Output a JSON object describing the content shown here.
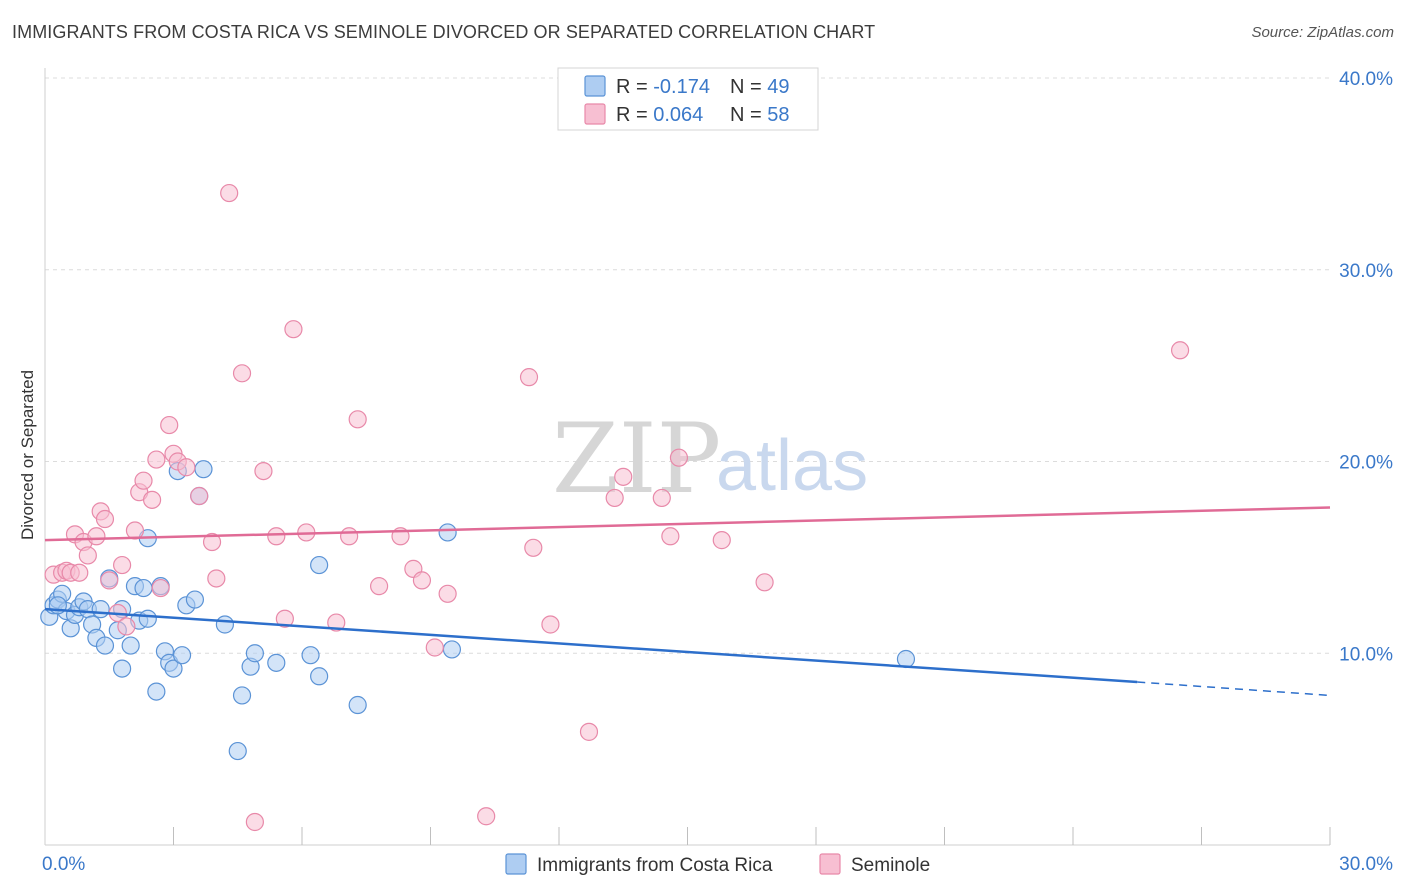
{
  "header": {
    "title": "IMMIGRANTS FROM COSTA RICA VS SEMINOLE DIVORCED OR SEPARATED CORRELATION CHART",
    "source": "Source: ZipAtlas.com"
  },
  "watermark": {
    "zip": "ZIP",
    "atlas": "atlas"
  },
  "legend": {
    "rows": [
      {
        "r_label": "R = ",
        "r_value": "-0.174",
        "n_label": "N = ",
        "n_value": "49"
      },
      {
        "r_label": "R = ",
        "r_value": "0.064",
        "n_label": "N = ",
        "n_value": "58"
      }
    ]
  },
  "colors": {
    "blue_fill": "#aecdf2",
    "blue_stroke": "#5b93d6",
    "blue_line": "#2d6fcb",
    "pink_fill": "#f7bfd2",
    "pink_stroke": "#e889a9",
    "pink_line": "#e06b96"
  },
  "chart_data": {
    "type": "scatter",
    "xlabel": "",
    "ylabel": "Divorced or Separated",
    "xlim": [
      0,
      30
    ],
    "ylim": [
      0,
      40
    ],
    "x_ticks": [
      {
        "value": 0,
        "label": "0.0%"
      },
      {
        "value": 30,
        "label": "30.0%"
      }
    ],
    "y_ticks": [
      {
        "value": 10,
        "label": "10.0%"
      },
      {
        "value": 20,
        "label": "20.0%"
      },
      {
        "value": 30,
        "label": "30.0%"
      },
      {
        "value": 40,
        "label": "40.0%"
      }
    ],
    "grid": true,
    "legend_position": "top-center",
    "series": [
      {
        "name": "Immigrants from Costa Rica",
        "color": "blue",
        "trend": {
          "x": [
            0,
            25.5
          ],
          "y": [
            12.3,
            8.5
          ],
          "dashed_to": [
            30,
            7.8
          ]
        },
        "points": [
          [
            0.1,
            11.9
          ],
          [
            0.2,
            12.5
          ],
          [
            0.3,
            12.8
          ],
          [
            0.4,
            13.1
          ],
          [
            0.5,
            12.2
          ],
          [
            0.6,
            11.3
          ],
          [
            0.7,
            12.0
          ],
          [
            0.8,
            12.4
          ],
          [
            0.9,
            12.7
          ],
          [
            1.0,
            12.3
          ],
          [
            1.1,
            11.5
          ],
          [
            1.2,
            10.8
          ],
          [
            1.3,
            12.3
          ],
          [
            1.4,
            10.4
          ],
          [
            1.5,
            13.9
          ],
          [
            1.7,
            11.2
          ],
          [
            1.8,
            12.3
          ],
          [
            1.8,
            9.2
          ],
          [
            2.0,
            10.4
          ],
          [
            2.1,
            13.5
          ],
          [
            2.2,
            11.7
          ],
          [
            2.3,
            13.4
          ],
          [
            2.4,
            11.8
          ],
          [
            2.4,
            16.0
          ],
          [
            2.6,
            8.0
          ],
          [
            2.7,
            13.5
          ],
          [
            2.8,
            10.1
          ],
          [
            2.9,
            9.5
          ],
          [
            3.0,
            9.2
          ],
          [
            3.1,
            19.5
          ],
          [
            3.2,
            9.9
          ],
          [
            3.3,
            12.5
          ],
          [
            3.5,
            12.8
          ],
          [
            3.6,
            18.2
          ],
          [
            3.7,
            19.6
          ],
          [
            4.2,
            11.5
          ],
          [
            4.5,
            4.9
          ],
          [
            4.6,
            7.8
          ],
          [
            4.8,
            9.3
          ],
          [
            4.9,
            10.0
          ],
          [
            5.4,
            9.5
          ],
          [
            6.2,
            9.9
          ],
          [
            6.4,
            14.6
          ],
          [
            6.4,
            8.8
          ],
          [
            7.3,
            7.3
          ],
          [
            9.4,
            16.3
          ],
          [
            9.5,
            10.2
          ],
          [
            20.1,
            9.7
          ],
          [
            0.3,
            12.5
          ]
        ]
      },
      {
        "name": "Seminole",
        "color": "pink",
        "trend": {
          "x": [
            0,
            30
          ],
          "y": [
            15.9,
            17.6
          ]
        },
        "points": [
          [
            0.2,
            14.1
          ],
          [
            0.4,
            14.2
          ],
          [
            0.5,
            14.3
          ],
          [
            0.6,
            14.2
          ],
          [
            0.7,
            16.2
          ],
          [
            0.9,
            15.8
          ],
          [
            1.0,
            15.1
          ],
          [
            1.2,
            16.1
          ],
          [
            1.3,
            17.4
          ],
          [
            1.4,
            17.0
          ],
          [
            1.5,
            13.8
          ],
          [
            1.7,
            12.1
          ],
          [
            1.8,
            14.6
          ],
          [
            1.9,
            11.4
          ],
          [
            2.1,
            16.4
          ],
          [
            2.2,
            18.4
          ],
          [
            2.3,
            19.0
          ],
          [
            2.5,
            18.0
          ],
          [
            2.6,
            20.1
          ],
          [
            2.7,
            13.4
          ],
          [
            2.9,
            21.9
          ],
          [
            3.0,
            20.4
          ],
          [
            3.1,
            20.0
          ],
          [
            3.3,
            19.7
          ],
          [
            3.6,
            18.2
          ],
          [
            3.9,
            15.8
          ],
          [
            4.0,
            13.9
          ],
          [
            4.3,
            34.0
          ],
          [
            4.6,
            24.6
          ],
          [
            4.9,
            1.2
          ],
          [
            5.1,
            19.5
          ],
          [
            5.4,
            16.1
          ],
          [
            5.6,
            11.8
          ],
          [
            5.8,
            26.9
          ],
          [
            6.1,
            16.3
          ],
          [
            6.8,
            11.6
          ],
          [
            7.1,
            16.1
          ],
          [
            7.3,
            22.2
          ],
          [
            7.8,
            13.5
          ],
          [
            8.3,
            16.1
          ],
          [
            8.6,
            14.4
          ],
          [
            8.8,
            13.8
          ],
          [
            9.1,
            10.3
          ],
          [
            9.4,
            13.1
          ],
          [
            10.3,
            1.5
          ],
          [
            11.3,
            24.4
          ],
          [
            11.4,
            15.5
          ],
          [
            11.8,
            11.5
          ],
          [
            12.7,
            5.9
          ],
          [
            13.3,
            18.1
          ],
          [
            13.5,
            19.2
          ],
          [
            14.4,
            18.1
          ],
          [
            14.6,
            16.1
          ],
          [
            14.8,
            20.2
          ],
          [
            15.8,
            15.9
          ],
          [
            16.8,
            13.7
          ],
          [
            26.5,
            25.8
          ],
          [
            0.8,
            14.2
          ]
        ]
      }
    ]
  },
  "bottom_legend": {
    "items": [
      "Immigrants from Costa Rica",
      "Seminole"
    ]
  }
}
